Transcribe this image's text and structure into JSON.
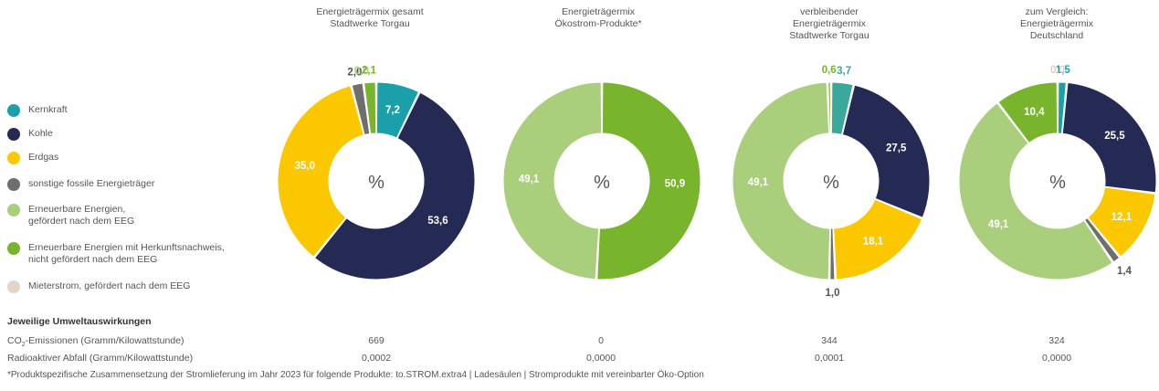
{
  "legend": [
    {
      "label": "Kernkraft",
      "color": "#19a0a8"
    },
    {
      "label": "Kohle",
      "color": "#252a55"
    },
    {
      "label": "Erdgas",
      "color": "#fbc800"
    },
    {
      "label": "sonstige fossile Energieträger",
      "color": "#6e6e6e"
    },
    {
      "label": "Erneuerbare Energien,\ngefördert nach dem EEG",
      "color": "#a9ce7c"
    },
    {
      "label": "Erneuerbare Energien mit Herkunftsnachweis,\nnicht gefördert nach dem EEG",
      "color": "#78b42c"
    },
    {
      "label": "Mieterstrom, gefördert nach dem EEG",
      "color": "#e2d6cb"
    }
  ],
  "chart_data": [
    {
      "type": "pie",
      "title": "Energieträgermix gesamt\nStadtwerke Torgau",
      "center_label": "%",
      "slices": [
        {
          "label": "Kernkraft",
          "value": 7.2,
          "display": "7,2",
          "color": "#19a0a8"
        },
        {
          "label": "Kohle",
          "value": 53.6,
          "display": "53,6",
          "color": "#252a55"
        },
        {
          "label": "Erdgas",
          "value": 35.0,
          "display": "35,0",
          "color": "#fbc800"
        },
        {
          "label": "sonstige fossile Energieträger",
          "value": 2.0,
          "display": "2,0",
          "color": "#6e6e6e"
        },
        {
          "label": "Erneuerbare Energien, gefördert nach dem EEG",
          "value": 0.0,
          "display": "0,0",
          "color": "#a9ce7c"
        },
        {
          "label": "Erneuerbare Energien mit Herkunftsnachweis, nicht gefördert nach dem EEG",
          "value": 2.1,
          "display": "2,1",
          "color": "#78b42c"
        }
      ]
    },
    {
      "type": "pie",
      "title": "Energieträgermix\nÖkostrom-Produkte*",
      "center_label": "%",
      "slices": [
        {
          "label": "Erneuerbare Energien mit Herkunftsnachweis, nicht gefördert nach dem EEG",
          "value": 50.9,
          "display": "50,9",
          "color": "#78b42c"
        },
        {
          "label": "Erneuerbare Energien, gefördert nach dem EEG",
          "value": 49.1,
          "display": "49,1",
          "color": "#a9ce7c"
        }
      ]
    },
    {
      "type": "pie",
      "title": "verbleibender\nEnergieträgermix\nStadtwerke Torgau",
      "center_label": "%",
      "slices": [
        {
          "label": "Kernkraft",
          "value": 3.7,
          "display": "3,7",
          "color": "#3aa89b"
        },
        {
          "label": "Kohle",
          "value": 27.5,
          "display": "27,5",
          "color": "#252a55"
        },
        {
          "label": "Erdgas",
          "value": 18.1,
          "display": "18,1",
          "color": "#fbc800"
        },
        {
          "label": "sonstige fossile Energieträger",
          "value": 1.0,
          "display": "1,0",
          "color": "#6e6e6e"
        },
        {
          "label": "Erneuerbare Energien, gefördert nach dem EEG",
          "value": 49.1,
          "display": "49,1",
          "color": "#a9ce7c"
        },
        {
          "label": "Erneuerbare Energien mit Herkunftsnachweis, nicht gefördert nach dem EEG",
          "value": 0.6,
          "display": "0,6",
          "color": "#78b42c"
        }
      ]
    },
    {
      "type": "pie",
      "title": "zum Vergleich:\nEnergieträgermix\nDeutschland",
      "center_label": "%",
      "slices": [
        {
          "label": "Kernkraft",
          "value": 1.5,
          "display": "1,5",
          "color": "#19a0a8"
        },
        {
          "label": "Kohle",
          "value": 25.5,
          "display": "25,5",
          "color": "#252a55"
        },
        {
          "label": "Erdgas",
          "value": 12.1,
          "display": "12,1",
          "color": "#fbc800"
        },
        {
          "label": "sonstige fossile Energieträger",
          "value": 1.4,
          "display": "1,4",
          "color": "#6e6e6e"
        },
        {
          "label": "Erneuerbare Energien, gefördert nach dem EEG",
          "value": 49.1,
          "display": "49,1",
          "color": "#a9ce7c"
        },
        {
          "label": "Erneuerbare Energien mit Herkunftsnachweis, nicht gefördert nach dem EEG",
          "value": 10.4,
          "display": "10,4",
          "color": "#78b42c"
        },
        {
          "label": "Mieterstrom, gefördert nach dem EEG",
          "value": 0.0,
          "display": "0,0",
          "color": "#e2d6cb"
        }
      ]
    }
  ],
  "impacts": {
    "title": "Jeweilige Umweltauswirkungen",
    "co2_label_main": "CO",
    "co2_label_sub": "2",
    "co2_label_rest": "-Emissionen (Gramm/Kilowattstunde)",
    "co2_values": [
      "669",
      "0",
      "344",
      "324"
    ],
    "waste_label": "Radioaktiver Abfall (Gramm/Kilowattstunde)",
    "waste_values": [
      "0,0002",
      "0,0000",
      "0,0001",
      "0,0000"
    ]
  },
  "footnote": "*Produktspezifische Zusammensetzung der Stromlieferung im Jahr 2023 für folgende Produkte: to.STROM.extra4 | Ladesäulen | Stromprodukte mit vereinbarter Öko-Option"
}
